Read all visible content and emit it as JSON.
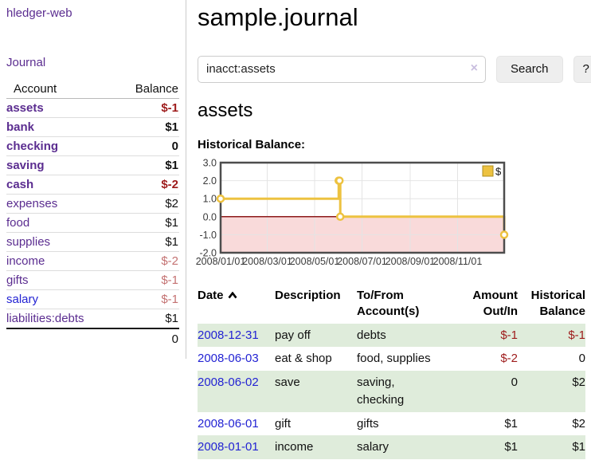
{
  "app": {
    "brand": "hledger-web",
    "nav_journal": "Journal"
  },
  "sidebar": {
    "header": {
      "account": "Account",
      "balance": "Balance"
    },
    "accounts": [
      {
        "name": "assets",
        "depth": 0,
        "bold": true,
        "balance": "$-1",
        "negative": "strong"
      },
      {
        "name": "bank",
        "depth": 1,
        "bold": true,
        "balance": "$1"
      },
      {
        "name": "checking",
        "depth": 2,
        "bold": true,
        "balance": "0"
      },
      {
        "name": "saving",
        "depth": 2,
        "bold": true,
        "balance": "$1"
      },
      {
        "name": "cash",
        "depth": 1,
        "bold": true,
        "balance": "$-2",
        "negative": "strong"
      },
      {
        "name": "expenses",
        "depth": 0,
        "bold": false,
        "balance": "$2"
      },
      {
        "name": "food",
        "depth": 1,
        "bold": false,
        "balance": "$1"
      },
      {
        "name": "supplies",
        "depth": 1,
        "bold": false,
        "balance": "$1"
      },
      {
        "name": "income",
        "depth": 0,
        "bold": false,
        "balance": "$-2",
        "negative": "muted"
      },
      {
        "name": "gifts",
        "depth": 1,
        "bold": false,
        "balance": "$-1",
        "negative": "muted"
      },
      {
        "name": "salary",
        "depth": 1,
        "bold": false,
        "balance": "$-1",
        "negative": "muted",
        "link": "blue"
      },
      {
        "name": "liabilities:debts",
        "depth": 0,
        "bold": false,
        "balance": "$1"
      }
    ],
    "total": "0"
  },
  "header": {
    "title": "sample.journal"
  },
  "search": {
    "value": "inacct:assets",
    "clear_icon": "×",
    "button": "Search",
    "help_button": "?"
  },
  "account_page": {
    "title": "assets",
    "chart_heading": "Historical Balance:"
  },
  "chart_data": {
    "type": "line",
    "step": true,
    "title": "Historical Balance:",
    "series": [
      {
        "name": "$",
        "color": "#edc240",
        "points": [
          [
            "2008-01-01",
            1
          ],
          [
            "2008-06-01",
            2
          ],
          [
            "2008-06-02",
            2
          ],
          [
            "2008-06-03",
            0
          ],
          [
            "2008-12-31",
            -1
          ]
        ]
      }
    ],
    "xlim": [
      "2008-01-01",
      "2008-12-31"
    ],
    "ylim": [
      -2,
      3
    ],
    "yticks": [
      3,
      2,
      1,
      0,
      -1,
      -2
    ],
    "xticks": [
      "2008/01/01",
      "2008/03/01",
      "2008/05/01",
      "2008/07/01",
      "2008/09/01",
      "2008/11/01"
    ],
    "grid": true,
    "legend": {
      "label": "$",
      "position": "top-right"
    },
    "zero_line_color": "#8d1a1a",
    "negative_region_color": "#f9dada"
  },
  "register": {
    "columns": [
      {
        "label": "Date",
        "sort": "asc"
      },
      {
        "label": "Description"
      },
      {
        "label": "To/From Account(s)"
      },
      {
        "label": "Amount Out/In"
      },
      {
        "label": "Historical Balance"
      }
    ],
    "rows": [
      {
        "date": "2008-12-31",
        "description": "pay off",
        "accounts": "debts",
        "amount": "$-1",
        "amount_negative": true,
        "balance": "$-1",
        "balance_negative": true
      },
      {
        "date": "2008-06-03",
        "description": "eat & shop",
        "accounts": "food, supplies",
        "amount": "$-2",
        "amount_negative": true,
        "balance": "0",
        "balance_negative": false
      },
      {
        "date": "2008-06-02",
        "description": "save",
        "accounts": "saving, checking",
        "amount": "0",
        "amount_negative": false,
        "balance": "$2",
        "balance_negative": false
      },
      {
        "date": "2008-06-01",
        "description": "gift",
        "accounts": "gifts",
        "amount": "$1",
        "amount_negative": false,
        "balance": "$2",
        "balance_negative": false
      },
      {
        "date": "2008-01-01",
        "description": "income",
        "accounts": "salary",
        "amount": "$1",
        "amount_negative": false,
        "balance": "$1",
        "balance_negative": false
      }
    ]
  },
  "colors": {
    "link_purple": "#5b2d90",
    "link_blue": "#2323d3",
    "negative_strong": "#9e1b1b",
    "negative_muted": "#c47272",
    "row_stripe_green": "#dfecdb",
    "series_gold": "#edc240",
    "negative_region_pink": "#f9dada",
    "zero_line_red": "#8d1a1a"
  }
}
